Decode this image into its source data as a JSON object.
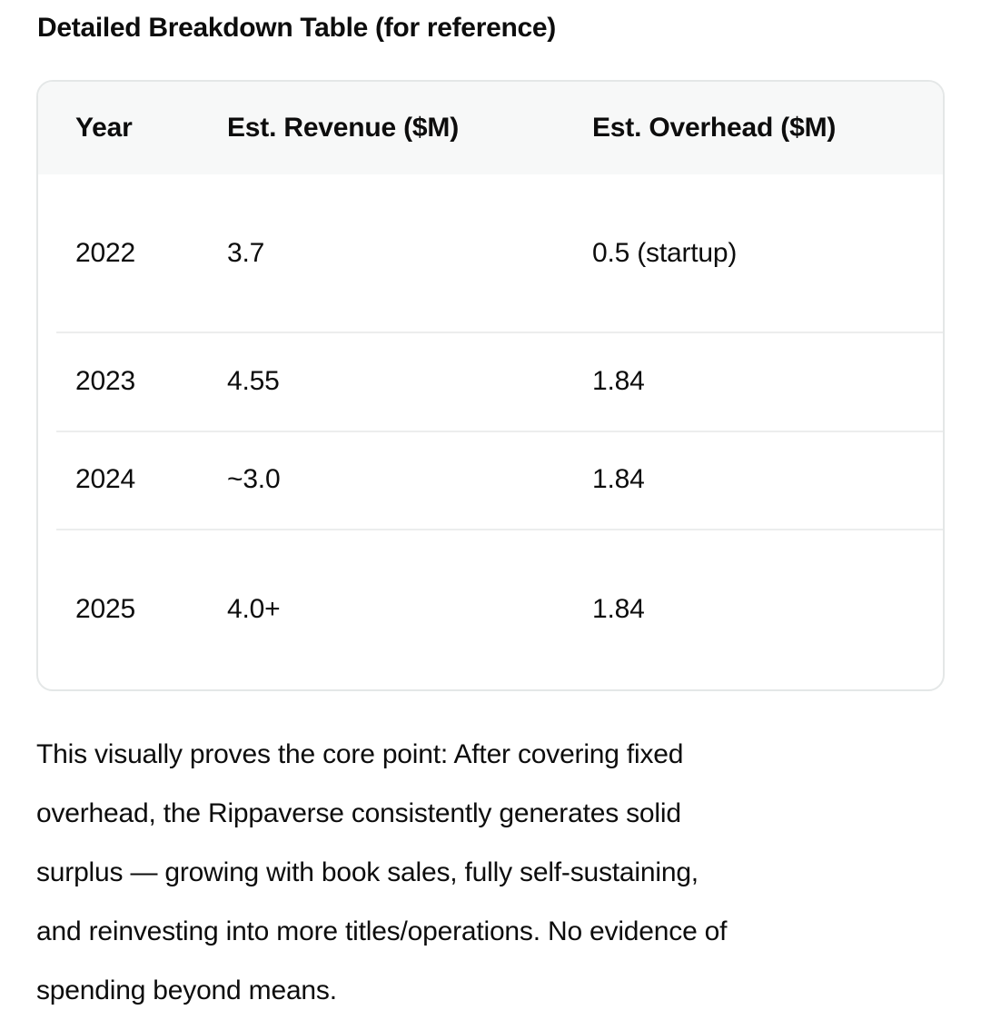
{
  "heading": "Detailed Breakdown Table (for reference)",
  "table": {
    "columns": [
      "Year",
      "Est. Revenue ($M)",
      "Est. Overhead ($M)"
    ],
    "rows": [
      {
        "year": "2022",
        "revenue": "3.7",
        "overhead": "0.5 (startup)"
      },
      {
        "year": "2023",
        "revenue": "4.55",
        "overhead": "1.84"
      },
      {
        "year": "2024",
        "revenue": "~3.0",
        "overhead": "1.84"
      },
      {
        "year": "2025",
        "revenue": "4.0+",
        "overhead": "1.84"
      }
    ]
  },
  "paragraph": "This visually proves the core point: After covering fixed\noverhead, the Rippaverse consistently generates solid\nsurplus — growing with book sales, fully self-sustaining,\nand reinvesting into more titles/operations. No evidence of\nspending beyond means.",
  "colors": {
    "text": "#0d0d0d",
    "table_header_bg": "#f7f8f8",
    "table_border": "#e4e7e7",
    "row_divider": "#eceded",
    "background": "#ffffff"
  }
}
